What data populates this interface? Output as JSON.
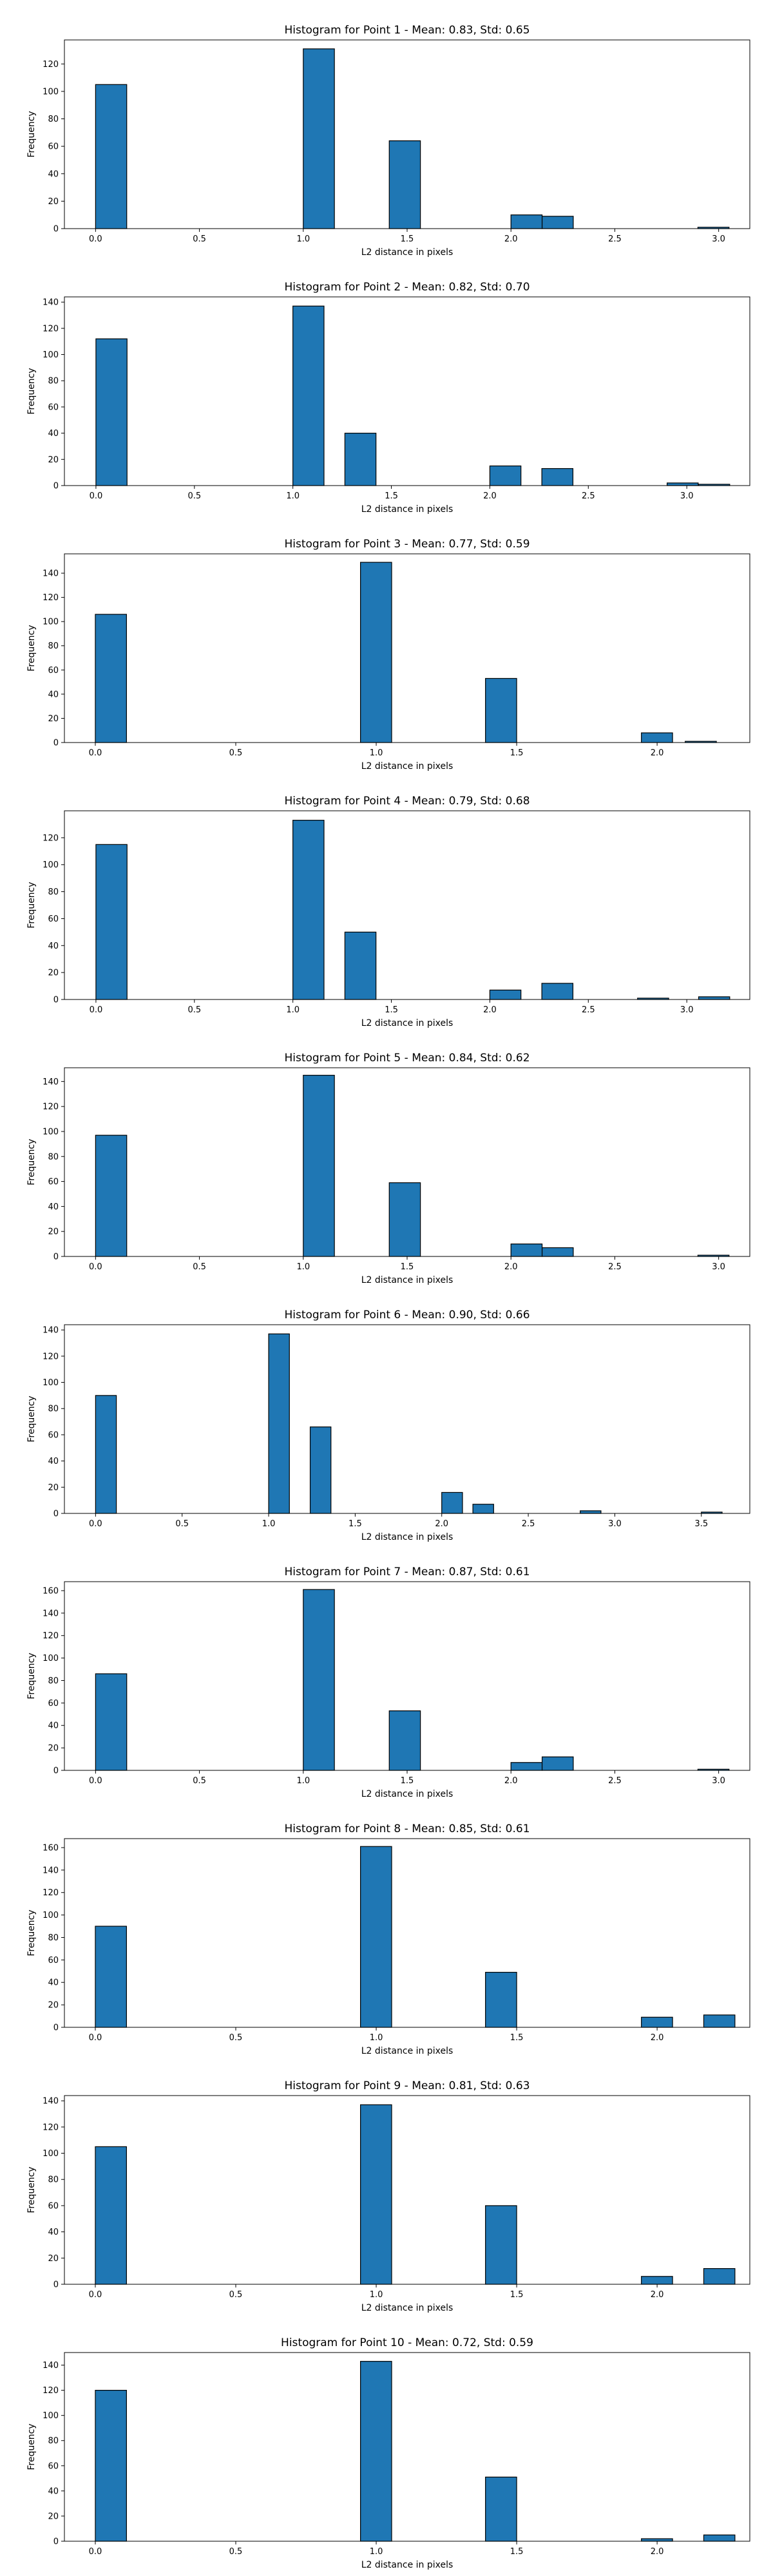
{
  "chart_data": [
    {
      "type": "bar",
      "title": "Histogram for Point 1 - Mean: 0.83, Std: 0.65",
      "xlabel": "L2 distance in pixels",
      "ylabel": "Frequency",
      "xlim": [
        -0.15,
        3.15
      ],
      "ylim": [
        0,
        137.5
      ],
      "xticks": [
        "0.0",
        "0.5",
        "1.0",
        "1.5",
        "2.0",
        "2.5",
        "3.0"
      ],
      "yticks": [
        "0",
        "20",
        "40",
        "60",
        "80",
        "100",
        "120"
      ],
      "bin_width": 0.15,
      "x": [
        0.0,
        1.0,
        1.414,
        2.0,
        2.15,
        2.9
      ],
      "values": [
        105,
        131,
        64,
        10,
        9,
        1
      ]
    },
    {
      "type": "bar",
      "title": "Histogram for Point 2 - Mean: 0.82, Std: 0.70",
      "xlabel": "L2 distance in pixels",
      "ylabel": "Frequency",
      "xlim": [
        -0.16,
        3.32
      ],
      "ylim": [
        0,
        144
      ],
      "xticks": [
        "0.0",
        "0.5",
        "1.0",
        "1.5",
        "2.0",
        "2.5",
        "3.0"
      ],
      "yticks": [
        "0",
        "20",
        "40",
        "60",
        "80",
        "100",
        "120",
        "140"
      ],
      "bin_width": 0.158,
      "x": [
        0.0,
        1.0,
        1.264,
        2.0,
        2.264,
        2.9,
        3.06
      ],
      "values": [
        112,
        137,
        40,
        15,
        13,
        2,
        1
      ]
    },
    {
      "type": "bar",
      "title": "Histogram for Point 3 - Mean: 0.77, Std: 0.59",
      "xlabel": "L2 distance in pixels",
      "ylabel": "Frequency",
      "xlim": [
        -0.11,
        2.33
      ],
      "ylim": [
        0,
        156
      ],
      "xticks": [
        "0.0",
        "0.5",
        "1.0",
        "1.5",
        "2.0"
      ],
      "yticks": [
        "0",
        "20",
        "40",
        "60",
        "80",
        "100",
        "120",
        "140"
      ],
      "bin_width": 0.111,
      "x": [
        0.0,
        0.944,
        1.389,
        1.944,
        2.1
      ],
      "values": [
        106,
        149,
        53,
        8,
        1
      ]
    },
    {
      "type": "bar",
      "title": "Histogram for Point 4 - Mean: 0.79, Std: 0.68",
      "xlabel": "L2 distance in pixels",
      "ylabel": "Frequency",
      "xlim": [
        -0.16,
        3.32
      ],
      "ylim": [
        0,
        140
      ],
      "xticks": [
        "0.0",
        "0.5",
        "1.0",
        "1.5",
        "2.0",
        "2.5",
        "3.0"
      ],
      "yticks": [
        "0",
        "20",
        "40",
        "60",
        "80",
        "100",
        "120"
      ],
      "bin_width": 0.158,
      "x": [
        0.0,
        1.0,
        1.264,
        2.0,
        2.264,
        2.75,
        3.06
      ],
      "values": [
        115,
        133,
        50,
        7,
        12,
        1,
        2
      ]
    },
    {
      "type": "bar",
      "title": "Histogram for Point 5 - Mean: 0.84, Std: 0.62",
      "xlabel": "L2 distance in pixels",
      "ylabel": "Frequency",
      "xlim": [
        -0.15,
        3.15
      ],
      "ylim": [
        0,
        151
      ],
      "xticks": [
        "0.0",
        "0.5",
        "1.0",
        "1.5",
        "2.0",
        "2.5",
        "3.0"
      ],
      "yticks": [
        "0",
        "20",
        "40",
        "60",
        "80",
        "100",
        "120",
        "140"
      ],
      "bin_width": 0.15,
      "x": [
        0.0,
        1.0,
        1.414,
        2.0,
        2.15,
        2.9
      ],
      "values": [
        97,
        145,
        59,
        10,
        7,
        1
      ]
    },
    {
      "type": "bar",
      "title": "Histogram for Point 6 - Mean: 0.90, Std: 0.66",
      "xlabel": "L2 distance in pixels",
      "ylabel": "Frequency",
      "xlim": [
        -0.18,
        3.78
      ],
      "ylim": [
        0,
        144
      ],
      "xticks": [
        "0.0",
        "0.5",
        "1.0",
        "1.5",
        "2.0",
        "2.5",
        "3.0",
        "3.5"
      ],
      "yticks": [
        "0",
        "20",
        "40",
        "60",
        "80",
        "100",
        "120",
        "140"
      ],
      "bin_width": 0.12,
      "x": [
        0.0,
        1.0,
        1.24,
        2.0,
        2.18,
        2.8,
        3.5
      ],
      "values": [
        90,
        137,
        66,
        16,
        7,
        2,
        1
      ]
    },
    {
      "type": "bar",
      "title": "Histogram for Point 7 - Mean: 0.87, Std: 0.61",
      "xlabel": "L2 distance in pixels",
      "ylabel": "Frequency",
      "xlim": [
        -0.15,
        3.15
      ],
      "ylim": [
        0,
        168
      ],
      "xticks": [
        "0.0",
        "0.5",
        "1.0",
        "1.5",
        "2.0",
        "2.5",
        "3.0"
      ],
      "yticks": [
        "0",
        "20",
        "40",
        "60",
        "80",
        "100",
        "120",
        "140",
        "160"
      ],
      "bin_width": 0.15,
      "x": [
        0.0,
        1.0,
        1.414,
        2.0,
        2.15,
        2.9
      ],
      "values": [
        86,
        161,
        53,
        7,
        12,
        1
      ]
    },
    {
      "type": "bar",
      "title": "Histogram for Point 8 - Mean: 0.85, Std: 0.61",
      "xlabel": "L2 distance in pixels",
      "ylabel": "Frequency",
      "xlim": [
        -0.11,
        2.33
      ],
      "ylim": [
        0,
        168
      ],
      "xticks": [
        "0.0",
        "0.5",
        "1.0",
        "1.5",
        "2.0"
      ],
      "yticks": [
        "0",
        "20",
        "40",
        "60",
        "80",
        "100",
        "120",
        "140",
        "160"
      ],
      "bin_width": 0.111,
      "x": [
        0.0,
        0.944,
        1.389,
        1.944,
        2.166
      ],
      "values": [
        90,
        161,
        49,
        9,
        11
      ]
    },
    {
      "type": "bar",
      "title": "Histogram for Point 9 - Mean: 0.81, Std: 0.63",
      "xlabel": "L2 distance in pixels",
      "ylabel": "Frequency",
      "xlim": [
        -0.11,
        2.33
      ],
      "ylim": [
        0,
        144
      ],
      "xticks": [
        "0.0",
        "0.5",
        "1.0",
        "1.5",
        "2.0"
      ],
      "yticks": [
        "0",
        "20",
        "40",
        "60",
        "80",
        "100",
        "120",
        "140"
      ],
      "bin_width": 0.111,
      "x": [
        0.0,
        0.944,
        1.389,
        1.944,
        2.166
      ],
      "values": [
        105,
        137,
        60,
        6,
        12
      ]
    },
    {
      "type": "bar",
      "title": "Histogram for Point 10 - Mean: 0.72, Std: 0.59",
      "xlabel": "L2 distance in pixels",
      "ylabel": "Frequency",
      "xlim": [
        -0.11,
        2.33
      ],
      "ylim": [
        0,
        150
      ],
      "xticks": [
        "0.0",
        "0.5",
        "1.0",
        "1.5",
        "2.0"
      ],
      "yticks": [
        "0",
        "20",
        "40",
        "60",
        "80",
        "100",
        "120",
        "140"
      ],
      "bin_width": 0.111,
      "x": [
        0.0,
        0.944,
        1.389,
        1.944,
        2.166
      ],
      "values": [
        120,
        143,
        51,
        2,
        5
      ]
    }
  ]
}
